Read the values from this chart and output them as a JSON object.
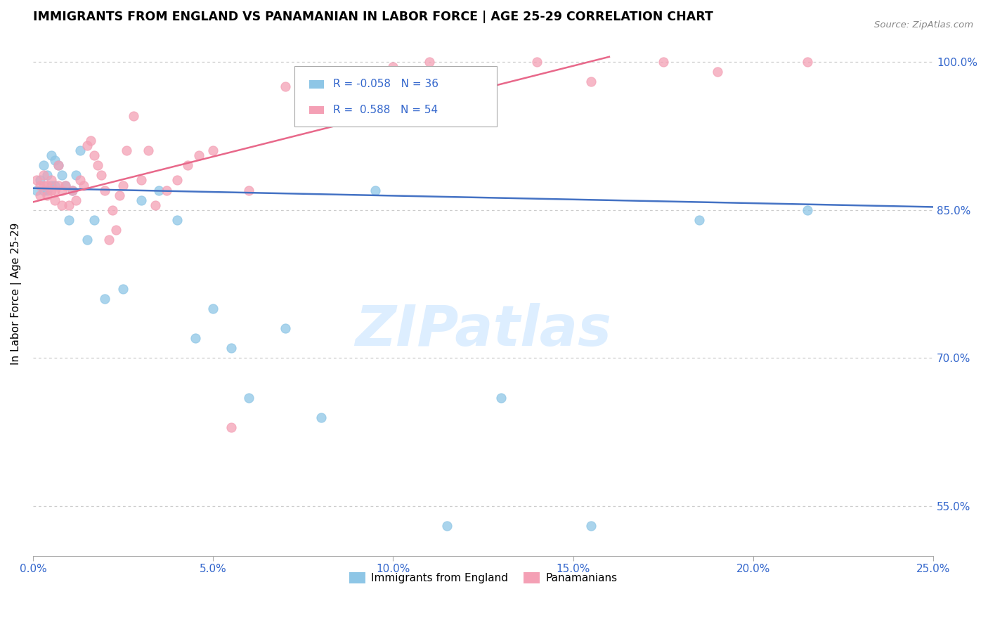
{
  "title": "IMMIGRANTS FROM ENGLAND VS PANAMANIAN IN LABOR FORCE | AGE 25-29 CORRELATION CHART",
  "source": "Source: ZipAtlas.com",
  "ylabel": "In Labor Force | Age 25-29",
  "xlim": [
    0.0,
    0.25
  ],
  "ylim": [
    0.5,
    1.03
  ],
  "england_R": -0.058,
  "england_N": 36,
  "panama_R": 0.588,
  "panama_N": 54,
  "england_color": "#8ec6e6",
  "panama_color": "#f4a0b5",
  "england_line_color": "#4472c4",
  "panama_line_color": "#e8688a",
  "watermark_color": "#ddeeff",
  "england_x": [
    0.001,
    0.002,
    0.003,
    0.003,
    0.004,
    0.004,
    0.005,
    0.005,
    0.006,
    0.006,
    0.007,
    0.008,
    0.009,
    0.01,
    0.011,
    0.012,
    0.013,
    0.015,
    0.017,
    0.02,
    0.025,
    0.03,
    0.035,
    0.04,
    0.045,
    0.05,
    0.055,
    0.06,
    0.07,
    0.08,
    0.095,
    0.115,
    0.13,
    0.155,
    0.185,
    0.215
  ],
  "england_y": [
    0.87,
    0.88,
    0.895,
    0.87,
    0.885,
    0.87,
    0.905,
    0.875,
    0.9,
    0.875,
    0.895,
    0.885,
    0.875,
    0.84,
    0.87,
    0.885,
    0.91,
    0.82,
    0.84,
    0.76,
    0.77,
    0.86,
    0.87,
    0.84,
    0.72,
    0.75,
    0.71,
    0.66,
    0.73,
    0.64,
    0.87,
    0.53,
    0.66,
    0.53,
    0.84,
    0.85
  ],
  "panama_x": [
    0.001,
    0.002,
    0.002,
    0.003,
    0.003,
    0.004,
    0.004,
    0.005,
    0.005,
    0.006,
    0.006,
    0.007,
    0.007,
    0.008,
    0.008,
    0.009,
    0.01,
    0.011,
    0.012,
    0.013,
    0.014,
    0.015,
    0.016,
    0.017,
    0.018,
    0.019,
    0.02,
    0.021,
    0.022,
    0.023,
    0.024,
    0.025,
    0.026,
    0.028,
    0.03,
    0.032,
    0.034,
    0.037,
    0.04,
    0.043,
    0.046,
    0.05,
    0.055,
    0.06,
    0.07,
    0.08,
    0.1,
    0.11,
    0.12,
    0.14,
    0.155,
    0.175,
    0.19,
    0.215
  ],
  "panama_y": [
    0.88,
    0.875,
    0.865,
    0.885,
    0.875,
    0.875,
    0.865,
    0.88,
    0.87,
    0.87,
    0.86,
    0.895,
    0.875,
    0.855,
    0.87,
    0.875,
    0.855,
    0.87,
    0.86,
    0.88,
    0.875,
    0.915,
    0.92,
    0.905,
    0.895,
    0.885,
    0.87,
    0.82,
    0.85,
    0.83,
    0.865,
    0.875,
    0.91,
    0.945,
    0.88,
    0.91,
    0.855,
    0.87,
    0.88,
    0.895,
    0.905,
    0.91,
    0.63,
    0.87,
    0.975,
    0.99,
    0.995,
    1.0,
    0.99,
    1.0,
    0.98,
    1.0,
    0.99,
    1.0
  ],
  "eng_line_x0": 0.0,
  "eng_line_x1": 0.25,
  "eng_line_y0": 0.872,
  "eng_line_y1": 0.853,
  "pan_line_x0": 0.0,
  "pan_line_x1": 0.16,
  "pan_line_y0": 0.858,
  "pan_line_y1": 1.005
}
